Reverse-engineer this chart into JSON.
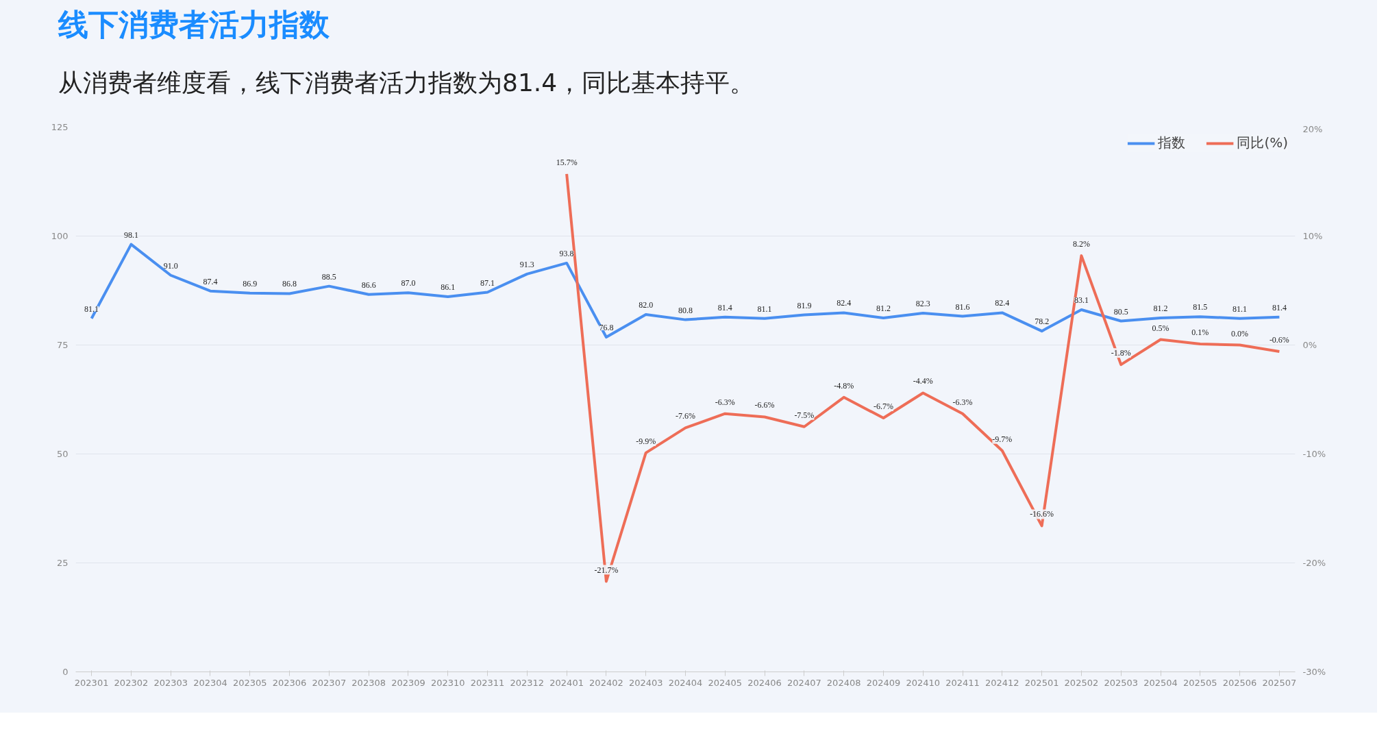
{
  "chart_data": {
    "type": "line",
    "title": "线下消费者活力指数",
    "subtitle": "从消费者维度看，线下消费者活力指数为81.4，同比基本持平。",
    "categories": [
      "202301",
      "202302",
      "202303",
      "202304",
      "202305",
      "202306",
      "202307",
      "202308",
      "202309",
      "202310",
      "202311",
      "202312",
      "202401",
      "202402",
      "202403",
      "202404",
      "202405",
      "202406",
      "202407",
      "202408",
      "202409",
      "202410",
      "202411",
      "202412",
      "202501",
      "202502",
      "202503",
      "202504",
      "202505",
      "202506",
      "202507"
    ],
    "series": [
      {
        "name": "指数",
        "color": "#4a8ff0",
        "values": [
          81.1,
          98.1,
          91.0,
          87.4,
          86.9,
          86.8,
          88.5,
          86.6,
          87.0,
          86.1,
          87.1,
          91.3,
          93.8,
          76.8,
          82.0,
          80.8,
          81.4,
          81.1,
          81.9,
          82.4,
          81.2,
          82.3,
          81.6,
          82.4,
          78.2,
          83.1,
          80.5,
          81.2,
          81.5,
          81.1,
          81.4
        ],
        "value_labels": [
          "81.1",
          "98.1",
          "91.0",
          "87.4",
          "86.9",
          "86.8",
          "88.5",
          "86.6",
          "87.0",
          "86.1",
          "87.1",
          "91.3",
          "93.8",
          "76.8",
          "82.0",
          "80.8",
          "81.4",
          "81.1",
          "81.9",
          "82.4",
          "81.2",
          "82.3",
          "81.6",
          "82.4",
          "78.2",
          "83.1",
          "80.5",
          "81.2",
          "81.5",
          "81.1",
          "81.4"
        ]
      },
      {
        "name": "同比(%)",
        "color": "#ee6d57",
        "axis": "y2",
        "values": [
          null,
          null,
          null,
          null,
          null,
          null,
          null,
          null,
          null,
          null,
          null,
          null,
          15.7,
          -21.7,
          -9.9,
          -7.6,
          -6.3,
          -6.6,
          -7.5,
          -4.8,
          -6.7,
          -4.4,
          -6.3,
          -9.7,
          -16.6,
          8.2,
          -1.8,
          0.5,
          0.1,
          0.0,
          -0.6
        ],
        "value_labels": [
          null,
          null,
          null,
          null,
          null,
          null,
          null,
          null,
          null,
          null,
          null,
          null,
          "15.7%",
          "-21.7%",
          "-9.9%",
          "-7.6%",
          "-6.3%",
          "-6.6%",
          "-7.5%",
          "-4.8%",
          "-6.7%",
          "-4.4%",
          "-6.3%",
          "-9.7%",
          "-16.6%",
          "8.2%",
          "-1.8%",
          "0.5%",
          "0.1%",
          "0.0%",
          "-0.6%"
        ]
      }
    ],
    "ylim": [
      0,
      125
    ],
    "yticks": [
      0,
      25,
      50,
      75,
      100,
      125
    ],
    "y2lim": [
      -30,
      20
    ],
    "y2ticks": [
      {
        "value": -30,
        "label": "-30%"
      },
      {
        "value": -20,
        "label": "-20%"
      },
      {
        "value": -10,
        "label": "-10%"
      },
      {
        "value": 0,
        "label": "0%"
      },
      {
        "value": 10,
        "label": "10%"
      },
      {
        "value": 20,
        "label": "20%"
      }
    ],
    "grid": "y",
    "legend": "top right",
    "marker": "none",
    "line_style": "solid"
  }
}
